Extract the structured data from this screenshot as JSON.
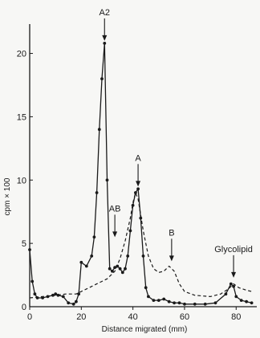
{
  "chart_data": {
    "type": "line",
    "title": "",
    "xlabel": "Distance migrated (mm)",
    "ylabel": "cpm × 100",
    "xlim": [
      0,
      88
    ],
    "ylim": [
      0,
      22
    ],
    "x_ticks": [
      0,
      20,
      40,
      60,
      80
    ],
    "y_ticks": [
      0,
      5,
      10,
      15,
      20
    ],
    "grid": false,
    "legend": "none",
    "series": [
      {
        "line_style": "solid",
        "marker": "dot",
        "color": "#1a1a1a",
        "points": [
          [
            0,
            4.5
          ],
          [
            1,
            2
          ],
          [
            2,
            1
          ],
          [
            3,
            0.7
          ],
          [
            5,
            0.7
          ],
          [
            7,
            0.8
          ],
          [
            9,
            0.9
          ],
          [
            10,
            1.0
          ],
          [
            11,
            0.9
          ],
          [
            13,
            0.8
          ],
          [
            15,
            0.3
          ],
          [
            17,
            0.2
          ],
          [
            18,
            0.4
          ],
          [
            19,
            1.0
          ],
          [
            20,
            3.5
          ],
          [
            22,
            3.2
          ],
          [
            24,
            4.0
          ],
          [
            25,
            5.5
          ],
          [
            26,
            9.0
          ],
          [
            27,
            14.0
          ],
          [
            28,
            18.0
          ],
          [
            29,
            20.8
          ],
          [
            30,
            10.0
          ],
          [
            31,
            3.0
          ],
          [
            32,
            2.8
          ],
          [
            33,
            3.1
          ],
          [
            34,
            3.2
          ],
          [
            35,
            3.0
          ],
          [
            36,
            2.7
          ],
          [
            37,
            3.0
          ],
          [
            38,
            4.0
          ],
          [
            39,
            6.0
          ],
          [
            40,
            8.0
          ],
          [
            41,
            9.0
          ],
          [
            42,
            9.3
          ],
          [
            43,
            7.0
          ],
          [
            44,
            4.0
          ],
          [
            45,
            1.5
          ],
          [
            46,
            0.8
          ],
          [
            48,
            0.5
          ],
          [
            50,
            0.5
          ],
          [
            52,
            0.6
          ],
          [
            54,
            0.4
          ],
          [
            56,
            0.3
          ],
          [
            58,
            0.3
          ],
          [
            60,
            0.2
          ],
          [
            64,
            0.2
          ],
          [
            68,
            0.2
          ],
          [
            72,
            0.3
          ],
          [
            76,
            1.0
          ],
          [
            78,
            1.8
          ],
          [
            79,
            1.6
          ],
          [
            80,
            0.8
          ],
          [
            82,
            0.5
          ],
          [
            84,
            0.4
          ],
          [
            86,
            0.3
          ]
        ]
      },
      {
        "line_style": "dashed",
        "marker": "none",
        "color": "#1a1a1a",
        "points": [
          [
            0,
            0.7
          ],
          [
            5,
            0.8
          ],
          [
            10,
            0.9
          ],
          [
            14,
            1.0
          ],
          [
            18,
            1.0
          ],
          [
            22,
            1.4
          ],
          [
            26,
            1.8
          ],
          [
            30,
            2.2
          ],
          [
            33,
            2.8
          ],
          [
            35,
            3.8
          ],
          [
            37,
            5.2
          ],
          [
            39,
            7.0
          ],
          [
            40,
            8.2
          ],
          [
            41,
            9.0
          ],
          [
            42,
            8.5
          ],
          [
            44,
            6.0
          ],
          [
            46,
            4.0
          ],
          [
            48,
            3.0
          ],
          [
            50,
            2.7
          ],
          [
            52,
            2.8
          ],
          [
            54,
            3.2
          ],
          [
            56,
            2.8
          ],
          [
            58,
            1.8
          ],
          [
            60,
            1.2
          ],
          [
            64,
            0.9
          ],
          [
            70,
            0.8
          ],
          [
            74,
            1.0
          ],
          [
            77,
            1.4
          ],
          [
            79,
            1.8
          ],
          [
            81,
            1.5
          ],
          [
            84,
            1.3
          ],
          [
            86,
            1.2
          ]
        ]
      }
    ],
    "annotations": [
      {
        "text": "A2",
        "x": 29,
        "y": 20.8,
        "arrow": "down"
      },
      {
        "text": "A",
        "x": 42,
        "y": 9.3,
        "arrow": "down"
      },
      {
        "text": "AB",
        "x": 33,
        "y": 5.3,
        "arrow": "down"
      },
      {
        "text": "B",
        "x": 55,
        "y": 3.4,
        "arrow": "down"
      },
      {
        "text": "Glycolipid",
        "x": 79,
        "y": 2.1,
        "arrow": "down"
      }
    ]
  }
}
